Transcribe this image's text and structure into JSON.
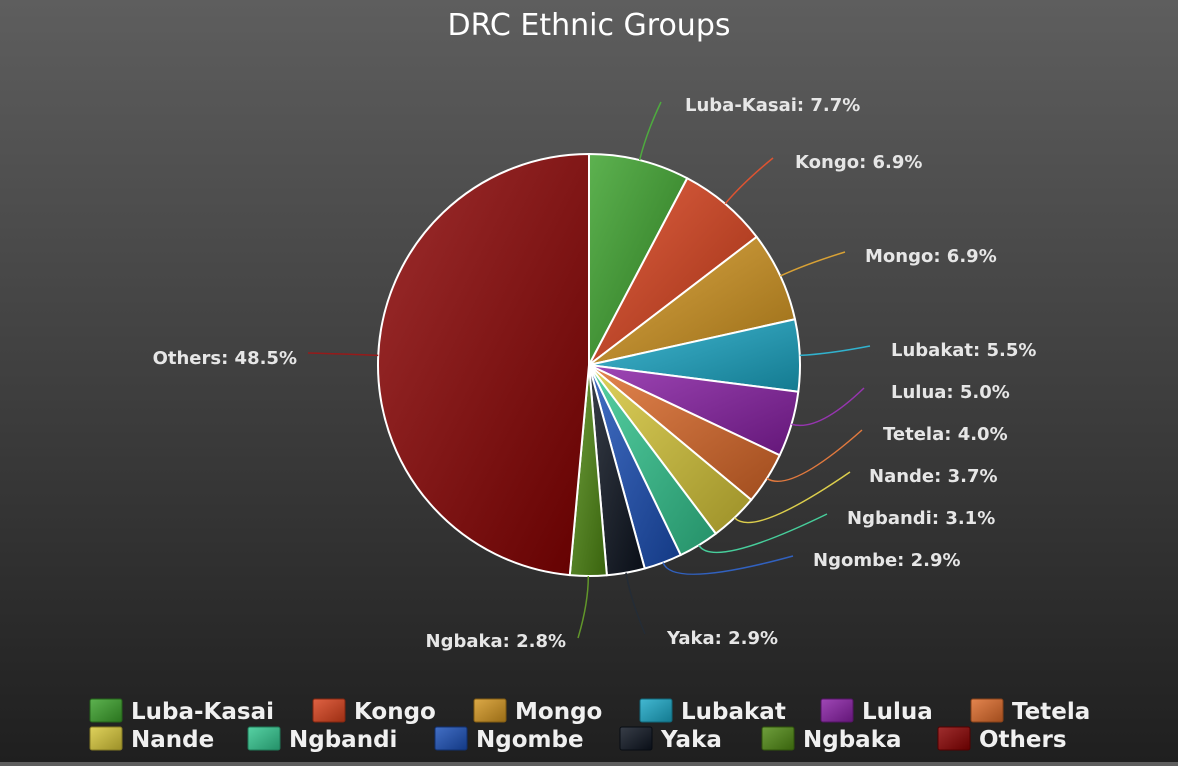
{
  "chart_data": {
    "type": "pie",
    "title": "DRC Ethnic Groups",
    "legend_position": "bottom",
    "slices": [
      {
        "name": "Luba-Kasai",
        "value": 7.7,
        "label": "Luba-Kasai: 7.7%",
        "color": "#3aa12a"
      },
      {
        "name": "Kongo",
        "value": 6.9,
        "label": "Kongo: 6.9%",
        "color": "#d9401a"
      },
      {
        "name": "Mongo",
        "value": 6.9,
        "label": "Mongo: 6.9%",
        "color": "#d4961e"
      },
      {
        "name": "Lubakat",
        "value": 5.5,
        "label": "Lubakat: 5.5%",
        "color": "#1aa9c8"
      },
      {
        "name": "Lulua",
        "value": 5.0,
        "label": "Lulua: 5.0%",
        "color": "#8a1fa6"
      },
      {
        "name": "Tetela",
        "value": 4.0,
        "label": "Tetela: 4.0%",
        "color": "#de6a28"
      },
      {
        "name": "Nande",
        "value": 3.7,
        "label": "Nande: 3.7%",
        "color": "#d8c838"
      },
      {
        "name": "Ngbandi",
        "value": 3.1,
        "label": "Ngbandi: 3.1%",
        "color": "#32c890"
      },
      {
        "name": "Ngombe",
        "value": 2.9,
        "label": "Ngombe: 2.9%",
        "color": "#1a4fb8"
      },
      {
        "name": "Yaka",
        "value": 2.9,
        "label": "Yaka: 2.9%",
        "color": "#0c1420"
      },
      {
        "name": "Ngbaka",
        "value": 2.8,
        "label": "Ngbaka: 2.8%",
        "color": "#4f8a12"
      },
      {
        "name": "Others",
        "value": 48.5,
        "label": "Others: 48.5%",
        "color": "#8a0000"
      }
    ]
  }
}
